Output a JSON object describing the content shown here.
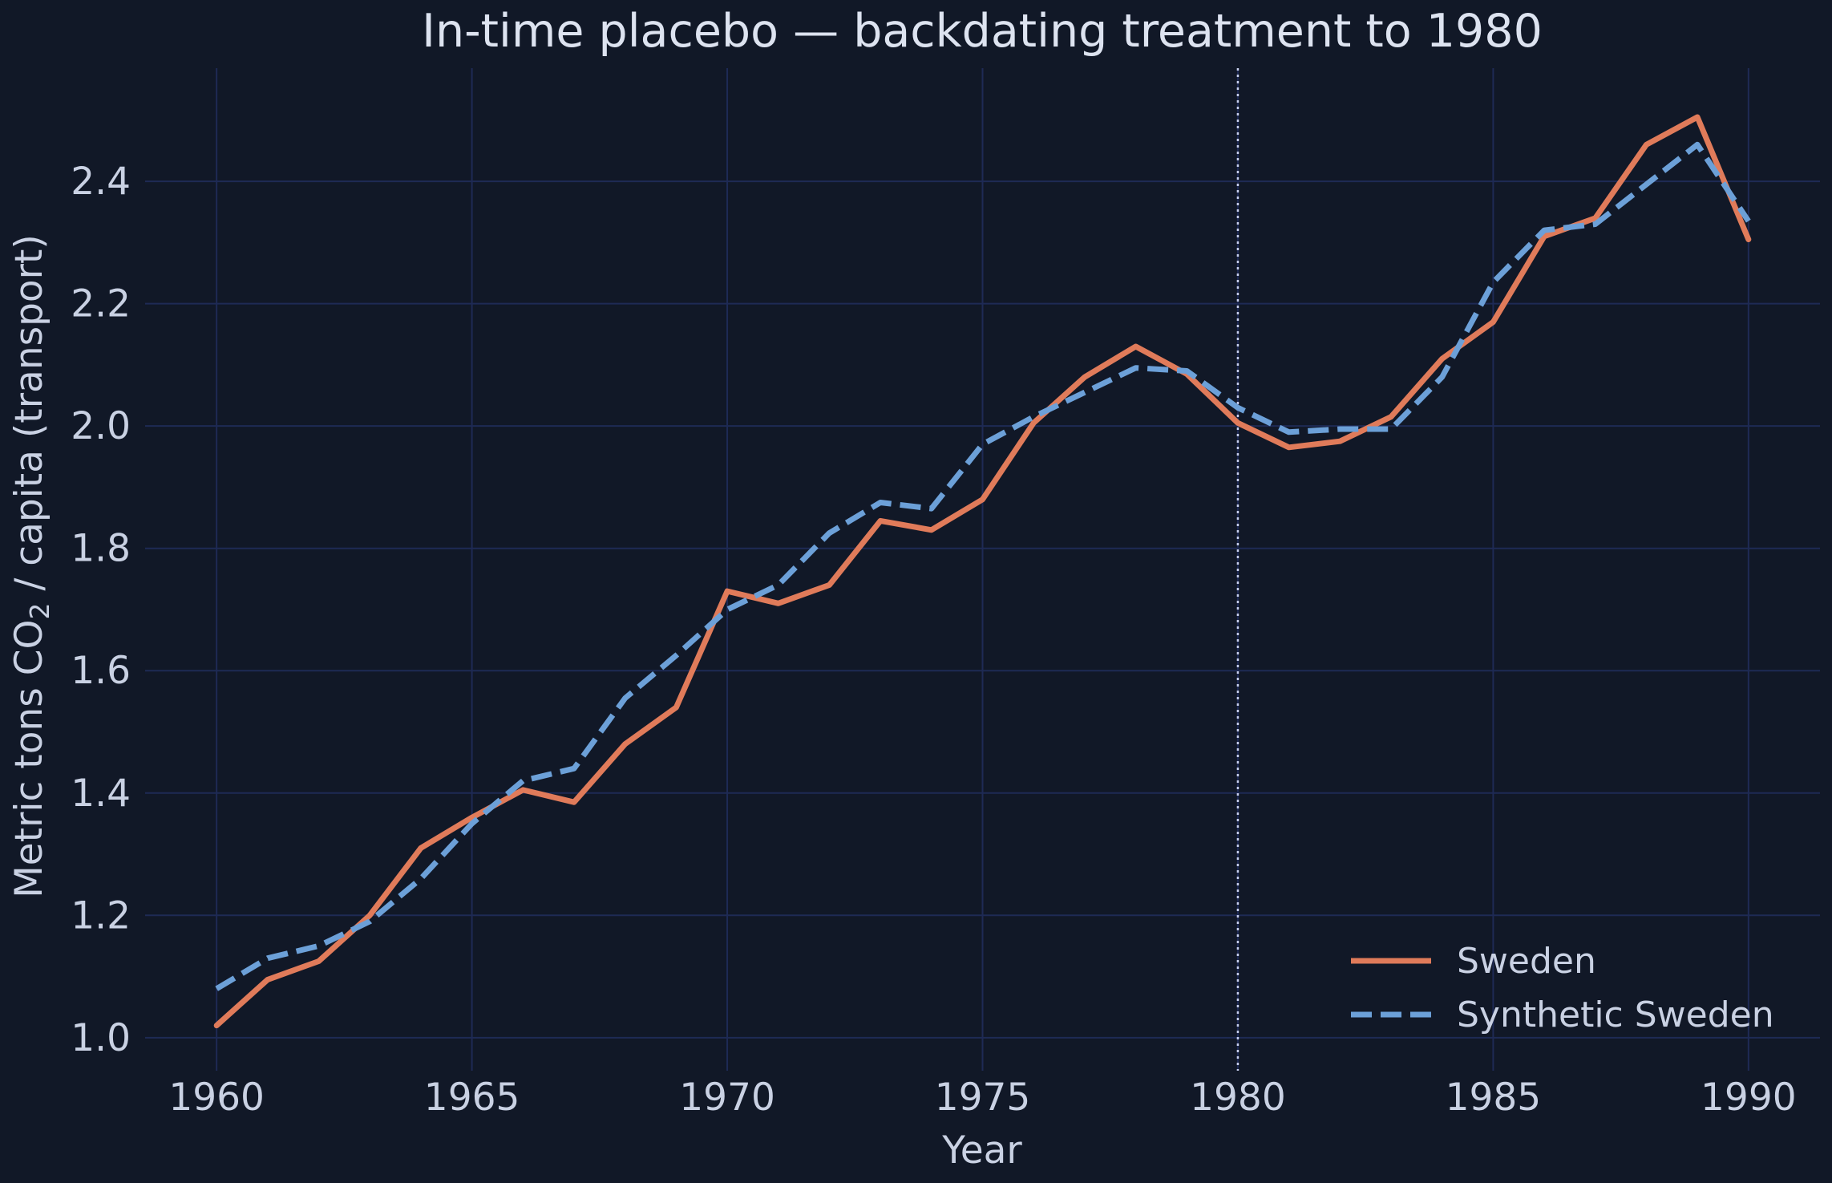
{
  "chart_data": {
    "type": "line",
    "title": "In-time placebo — backdating treatment to 1980",
    "xlabel": "Year",
    "ylabel_prefix": "Metric tons CO",
    "ylabel_subscript": "2",
    "ylabel_suffix": " / capita (transport)",
    "xlim": [
      1958.6,
      1991.4
    ],
    "ylim": [
      0.946,
      2.585
    ],
    "xticks": [
      1960,
      1965,
      1970,
      1975,
      1980,
      1985,
      1990
    ],
    "yticks": [
      1.0,
      1.2,
      1.4,
      1.6,
      1.8,
      2.0,
      2.2,
      2.4
    ],
    "grid": true,
    "legend_position": "lower-right",
    "treatment_year": 1980,
    "x": [
      1960,
      1961,
      1962,
      1963,
      1964,
      1965,
      1966,
      1967,
      1968,
      1969,
      1970,
      1971,
      1972,
      1973,
      1974,
      1975,
      1976,
      1977,
      1978,
      1979,
      1980,
      1981,
      1982,
      1983,
      1984,
      1985,
      1986,
      1987,
      1988,
      1989,
      1990
    ],
    "series": [
      {
        "name": "Sweden",
        "style": "solid",
        "color": "#e07b5a",
        "values": [
          1.02,
          1.095,
          1.125,
          1.2,
          1.31,
          1.36,
          1.405,
          1.385,
          1.48,
          1.54,
          1.73,
          1.71,
          1.74,
          1.845,
          1.83,
          1.88,
          2.005,
          2.08,
          2.13,
          2.085,
          2.005,
          1.965,
          1.975,
          2.015,
          2.11,
          2.17,
          2.31,
          2.34,
          2.46,
          2.505,
          2.305
        ]
      },
      {
        "name": "Synthetic Sweden",
        "style": "dashed",
        "color": "#6ca0d8",
        "values": [
          1.08,
          1.13,
          1.15,
          1.19,
          1.26,
          1.35,
          1.42,
          1.44,
          1.555,
          1.625,
          1.7,
          1.74,
          1.825,
          1.875,
          1.865,
          1.97,
          2.015,
          2.055,
          2.095,
          2.09,
          2.03,
          1.99,
          1.995,
          1.995,
          2.08,
          2.235,
          2.32,
          2.33,
          2.395,
          2.46,
          2.335
        ]
      }
    ]
  },
  "colors": {
    "background": "#111827",
    "grid": "#1e2a55",
    "text": "#c9d1e3",
    "placebo_line": "#c8cfee"
  }
}
